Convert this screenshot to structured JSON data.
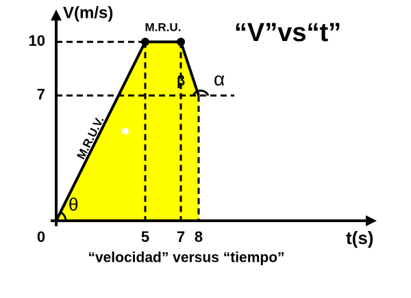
{
  "chart_data": {
    "type": "line",
    "title": "“V”vs“t”",
    "subtitle": "“velocidad” versus “tiempo”",
    "y_label": "V(m/s)",
    "x_label": "t(s)",
    "x": [
      0,
      5,
      7,
      8
    ],
    "values": [
      0,
      10,
      10,
      7
    ],
    "color": "#000000",
    "fill": "#ffff00",
    "xlim": [
      0,
      18
    ],
    "ylim": [
      0,
      11.5
    ],
    "xticks": [
      0,
      5,
      7,
      8
    ],
    "yticks": [
      7,
      10
    ],
    "annotations": [
      "M.R.U.",
      "M.R.U.V.",
      "θ",
      "α",
      "β"
    ]
  }
}
